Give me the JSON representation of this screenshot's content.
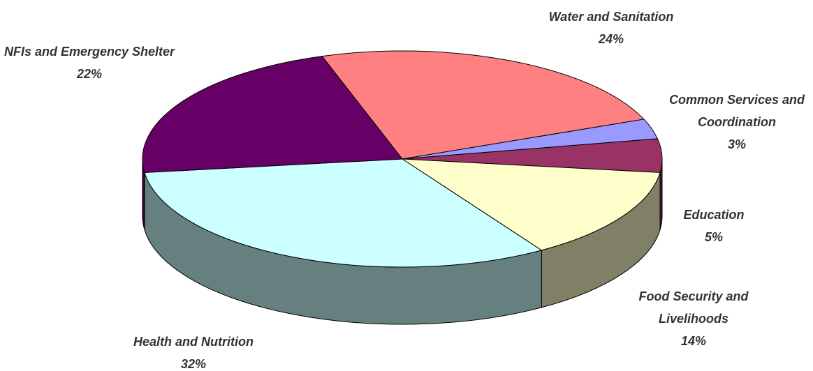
{
  "chart_data": {
    "type": "pie",
    "categories": [
      "Water and Sanitation",
      "Common Services and Coordination",
      "Education",
      "Food Security and Livelihoods",
      "Health and Nutrition",
      "NFIs and Emergency Shelter"
    ],
    "values": [
      24,
      3,
      5,
      14,
      32,
      22
    ],
    "value_labels": [
      "24%",
      "3%",
      "5%",
      "14%",
      "32%",
      "22%"
    ],
    "colors": [
      "#ff8080",
      "#9999ff",
      "#993366",
      "#ffffcc",
      "#ccffff",
      "#660066"
    ]
  }
}
